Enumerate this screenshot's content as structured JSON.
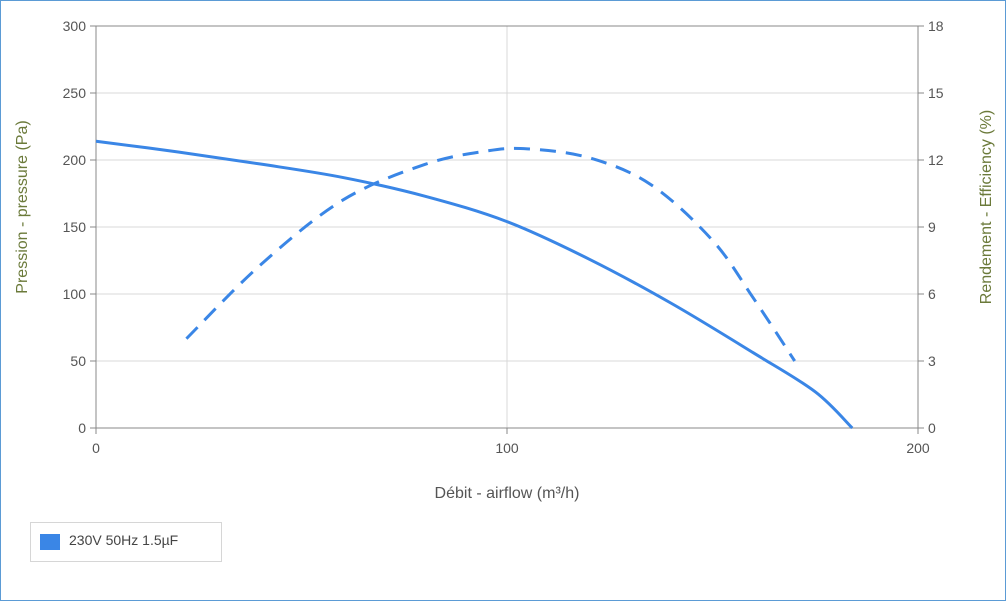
{
  "colors": {
    "series": "#3a86e6",
    "grid": "#d9d9d9",
    "axis": "#888888"
  },
  "chart_data": {
    "type": "line",
    "xlabel": "Débit - airflow (m³/h)",
    "ylabel": "Pression - pressure (Pa)",
    "y2label": "Rendement - Efficiency (%)",
    "xlim": [
      0,
      200
    ],
    "ylim": [
      0,
      300
    ],
    "y2lim": [
      0,
      18
    ],
    "xticks": [
      0,
      100,
      200
    ],
    "yticks": [
      0,
      50,
      100,
      150,
      200,
      250,
      300
    ],
    "y2ticks": [
      0,
      3,
      6,
      9,
      12,
      15,
      18
    ],
    "grid": true,
    "legend_position": "bottom-left",
    "series": [
      {
        "name": "230V 50Hz 1.5µF",
        "axis": "left",
        "style": "solid",
        "x": [
          0,
          20,
          40,
          60,
          80,
          100,
          120,
          140,
          160,
          175,
          184
        ],
        "y": [
          214,
          206,
          197,
          187,
          173,
          154,
          126,
          93,
          56,
          27,
          0
        ]
      },
      {
        "name": "",
        "axis": "right",
        "style": "dashed",
        "x": [
          22,
          40,
          60,
          80,
          95,
          105,
          120,
          135,
          150,
          160,
          170
        ],
        "y": [
          4.0,
          7.3,
          10.2,
          11.8,
          12.4,
          12.5,
          12.1,
          10.9,
          8.4,
          5.8,
          3.0
        ]
      }
    ]
  }
}
